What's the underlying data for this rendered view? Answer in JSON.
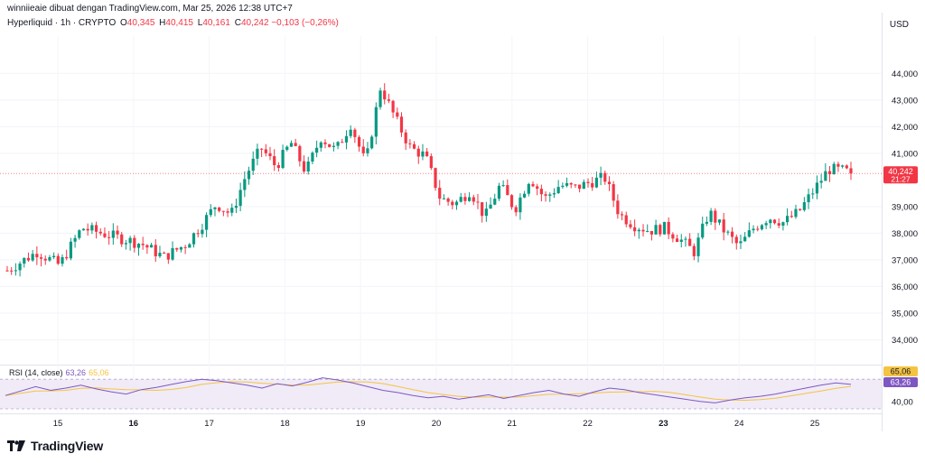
{
  "header": {
    "credit": "winniieaie dibuat dengan TradingView.com, Mar 25, 2026 12:38 UTC+7",
    "symbol": "Hyperliquid · 1h · CRYPTO",
    "o_label": "O",
    "o_value": "40,345",
    "h_label": "H",
    "h_value": "40,415",
    "l_label": "L",
    "l_value": "40,161",
    "c_label": "C",
    "c_value": "40,242",
    "change": "−0,103 (−0,26%)",
    "currency": "USD"
  },
  "price_tag": {
    "value": "40,242",
    "countdown": "21:27"
  },
  "rsi": {
    "label": "RSI (14, close)",
    "rsi_value": "63,26",
    "ma_value": "65,06",
    "scale_label": "40,00"
  },
  "brand": {
    "name": "TradingView"
  },
  "colors": {
    "up": "#089981",
    "down": "#f23645",
    "rsi": "#7e57c2",
    "rsi_ma": "#f5c342",
    "band": "#ede7f6"
  },
  "chart_data": {
    "type": "candlestick",
    "y_ticks": [
      "44,000",
      "43,000",
      "42,000",
      "41,000",
      "39,000",
      "38,000",
      "37,000",
      "36,000",
      "35,000",
      "34,000"
    ],
    "y_tick_values": [
      44,
      43,
      42,
      41,
      39,
      38,
      37,
      36,
      35,
      34
    ],
    "ylim": [
      33.2,
      45.4
    ],
    "x_ticks": [
      "15",
      "16",
      "17",
      "18",
      "19",
      "20",
      "21",
      "22",
      "23",
      "24",
      "25"
    ],
    "x_ticks_bold": [
      "16",
      "23"
    ],
    "last_price": 40.242,
    "close_path": [
      [
        0,
        36.6
      ],
      [
        2,
        37.3
      ],
      [
        3.5,
        36.8
      ],
      [
        5,
        38.2
      ],
      [
        7,
        37.9
      ],
      [
        9,
        37.6
      ],
      [
        10.5,
        37.1
      ],
      [
        12,
        37.6
      ],
      [
        13,
        38.3
      ],
      [
        14,
        39.1
      ],
      [
        15,
        38.7
      ],
      [
        16,
        40.2
      ],
      [
        17,
        41.2
      ],
      [
        18,
        40.5
      ],
      [
        19,
        41.4
      ],
      [
        20,
        40.3
      ],
      [
        21,
        41.6
      ],
      [
        22,
        41.1
      ],
      [
        23,
        42.1
      ],
      [
        24,
        40.6
      ],
      [
        25,
        43.5
      ],
      [
        26,
        42.3
      ],
      [
        27,
        41.2
      ],
      [
        28,
        40.9
      ],
      [
        29,
        39.3
      ],
      [
        30,
        39.1
      ],
      [
        31,
        39.6
      ],
      [
        32,
        38.6
      ],
      [
        33,
        39.8
      ],
      [
        34,
        38.9
      ],
      [
        35,
        40.1
      ],
      [
        36,
        39.3
      ],
      [
        37,
        39.8
      ],
      [
        38,
        39.7
      ],
      [
        39,
        39.9
      ],
      [
        40,
        40.1
      ],
      [
        41,
        38.7
      ],
      [
        42,
        38.3
      ],
      [
        43,
        38.1
      ],
      [
        44,
        38.2
      ],
      [
        45,
        37.8
      ],
      [
        46,
        37.3
      ],
      [
        47,
        38.8
      ],
      [
        48,
        38.1
      ],
      [
        49,
        37.5
      ],
      [
        50,
        38.2
      ],
      [
        51,
        38.6
      ],
      [
        52,
        38.4
      ],
      [
        53,
        38.8
      ],
      [
        54,
        39.6
      ],
      [
        55,
        40.4
      ],
      [
        56,
        40.35
      ],
      [
        56.5,
        40.24
      ]
    ],
    "rsi_series": [
      48,
      54,
      60,
      55,
      58,
      62,
      57,
      53,
      50,
      56,
      59,
      63,
      67,
      70,
      68,
      65,
      62,
      58,
      64,
      61,
      66,
      72,
      69,
      65,
      60,
      55,
      52,
      48,
      45,
      47,
      43,
      46,
      49,
      44,
      48,
      52,
      55,
      50,
      47,
      53,
      58,
      56,
      52,
      49,
      46,
      43,
      40,
      38,
      42,
      45,
      47,
      50,
      54,
      58,
      62,
      65,
      63
    ],
    "rsi_ylim": [
      30,
      80
    ],
    "rsi_band": [
      30,
      70
    ]
  }
}
